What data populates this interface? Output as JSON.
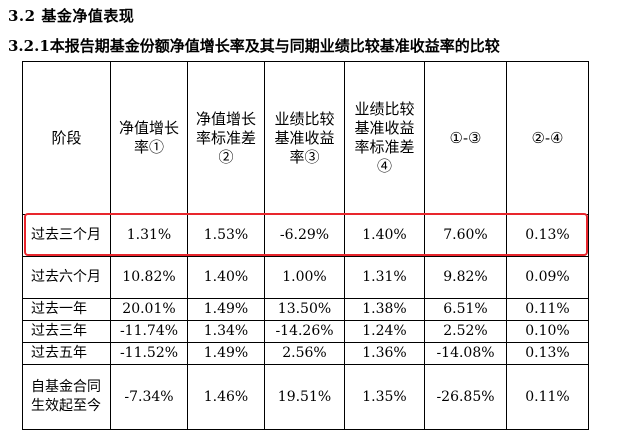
{
  "section_title": "3.2 基金净值表现",
  "subsection_title": "3.2.1本报告期基金份额净值增长率及其与同期业绩比较基准收益率的比较",
  "table": {
    "headers": [
      "阶段",
      "净值增长率①",
      "净值增长率标准差②",
      "业绩比较基准收益率③",
      "业绩比较基准收益率标准差④",
      "①-③",
      "②-④"
    ],
    "rows": [
      [
        "过去三个月",
        "1.31%",
        "1.53%",
        "-6.29%",
        "1.40%",
        "7.60%",
        "0.13%"
      ],
      [
        "过去六个月",
        "10.82%",
        "1.40%",
        "1.00%",
        "1.31%",
        "9.82%",
        "0.09%"
      ],
      [
        "过去一年",
        "20.01%",
        "1.49%",
        "13.50%",
        "1.38%",
        "6.51%",
        "0.11%"
      ],
      [
        "过去三年",
        "-11.74%",
        "1.34%",
        "-14.26%",
        "1.24%",
        "2.52%",
        "0.10%"
      ],
      [
        "过去五年",
        "-11.52%",
        "1.49%",
        "2.56%",
        "1.36%",
        "-14.08%",
        "0.13%"
      ],
      [
        "自基金合同生效起至今",
        "-7.34%",
        "1.46%",
        "19.51%",
        "1.35%",
        "-26.85%",
        "0.11%"
      ]
    ]
  },
  "highlight_color": "#e8262d"
}
